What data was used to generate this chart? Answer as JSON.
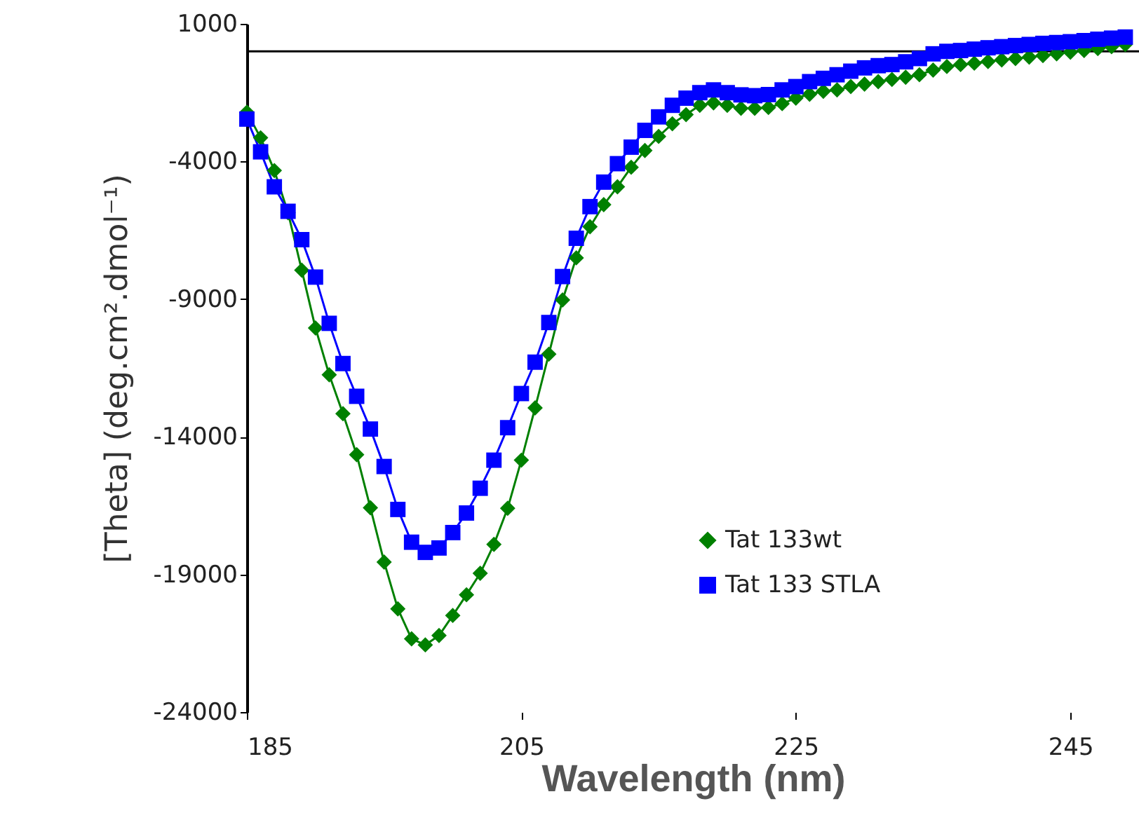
{
  "chart_data": {
    "type": "line",
    "xlabel": "Wavelength (nm)",
    "ylabel": "[Theta] (deg.cm².dmol⁻¹)",
    "xlim": [
      185,
      250
    ],
    "xticks": [
      185,
      205,
      225,
      245
    ],
    "ylim": [
      -24000,
      1000
    ],
    "yticks": [
      1000,
      -4000,
      -9000,
      -14000,
      -19000,
      -24000
    ],
    "grid": false,
    "legend": "bottom right",
    "ref_lines": [
      {
        "axis": "y",
        "value": 0,
        "color": "#000000"
      }
    ],
    "series": [
      {
        "name": "Tat 133wt",
        "color": "#008000",
        "marker": "diamond",
        "x": [
          185,
          186,
          187,
          188,
          189,
          190,
          191,
          192,
          193,
          194,
          195,
          196,
          197,
          198,
          199,
          200,
          201,
          202,
          203,
          204,
          205,
          206,
          207,
          208,
          209,
          210,
          211,
          212,
          213,
          214,
          215,
          216,
          217,
          218,
          219,
          220,
          221,
          222,
          223,
          224,
          225,
          226,
          227,
          228,
          229,
          230,
          231,
          232,
          233,
          234,
          235,
          236,
          237,
          238,
          239,
          240,
          241,
          242,
          243,
          244,
          245,
          246,
          247,
          248,
          249
        ],
        "values": [
          -2210,
          -3140,
          -4330,
          -5860,
          -7950,
          -10050,
          -11750,
          -13160,
          -14650,
          -16580,
          -18550,
          -20250,
          -21340,
          -21560,
          -21220,
          -20490,
          -19740,
          -18960,
          -17910,
          -16600,
          -14850,
          -12950,
          -11000,
          -9030,
          -7500,
          -6370,
          -5570,
          -4920,
          -4210,
          -3600,
          -3090,
          -2630,
          -2300,
          -1960,
          -1870,
          -1960,
          -2070,
          -2070,
          -2040,
          -1900,
          -1700,
          -1560,
          -1450,
          -1400,
          -1280,
          -1190,
          -1100,
          -1020,
          -940,
          -850,
          -680,
          -550,
          -480,
          -430,
          -370,
          -310,
          -260,
          -210,
          -150,
          -90,
          -30,
          30,
          100,
          170,
          250
        ]
      },
      {
        "name": "Tat 133 STLA",
        "color": "#0000ff",
        "marker": "square",
        "x": [
          185,
          186,
          187,
          188,
          189,
          190,
          191,
          192,
          193,
          194,
          195,
          196,
          197,
          198,
          199,
          200,
          201,
          202,
          203,
          204,
          205,
          206,
          207,
          208,
          209,
          210,
          211,
          212,
          213,
          214,
          215,
          216,
          217,
          218,
          219,
          220,
          221,
          222,
          223,
          224,
          225,
          226,
          227,
          228,
          229,
          230,
          231,
          232,
          233,
          234,
          235,
          236,
          237,
          238,
          239,
          240,
          241,
          242,
          243,
          244,
          245,
          246,
          247,
          248,
          249
        ],
        "values": [
          -2460,
          -3650,
          -4920,
          -5810,
          -6840,
          -8200,
          -9880,
          -11340,
          -12530,
          -13720,
          -15080,
          -16640,
          -17830,
          -18200,
          -18040,
          -17480,
          -16770,
          -15870,
          -14850,
          -13670,
          -12430,
          -11290,
          -9850,
          -8180,
          -6790,
          -5640,
          -4750,
          -4080,
          -3480,
          -2870,
          -2380,
          -1960,
          -1700,
          -1500,
          -1400,
          -1500,
          -1580,
          -1610,
          -1570,
          -1400,
          -1280,
          -1100,
          -980,
          -850,
          -720,
          -600,
          -520,
          -480,
          -380,
          -260,
          -90,
          0,
          30,
          80,
          130,
          170,
          210,
          250,
          290,
          320,
          350,
          390,
          440,
          480,
          520
        ]
      }
    ]
  }
}
